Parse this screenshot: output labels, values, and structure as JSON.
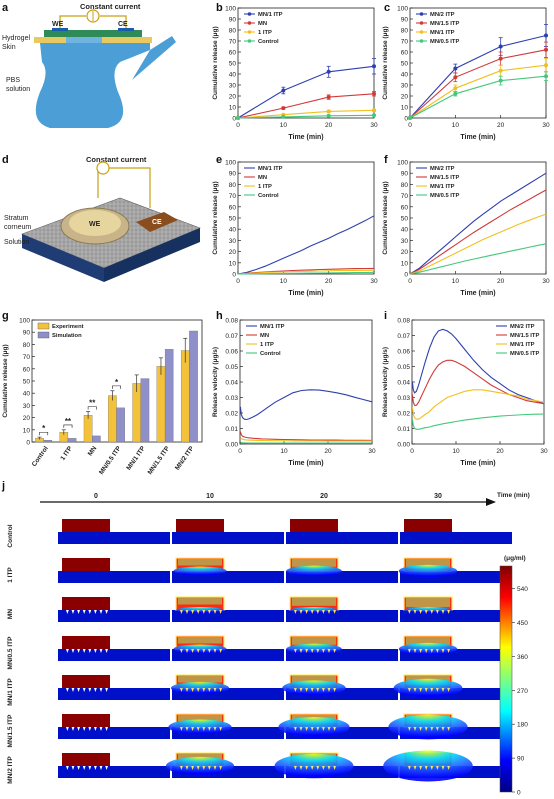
{
  "panel_letters": [
    "a",
    "b",
    "c",
    "d",
    "e",
    "f",
    "g",
    "h",
    "i",
    "j"
  ],
  "diagram_a": {
    "title": "Constant current",
    "we": "WE",
    "ce": "CE",
    "hydrogel": "Hydrogel",
    "skin": "Skin",
    "pbs1": "PBS",
    "pbs2": "solution"
  },
  "diagram_d": {
    "title": "Constant current",
    "stratum1": "Stratum",
    "stratum2": "corneum",
    "solution": "Solution",
    "we": "WE",
    "ce": "CE"
  },
  "colors": {
    "mn2": "#2e3fb0",
    "mn15": "#d23a3a",
    "mn1": "#f0c020",
    "mn05": "#44c87a",
    "experiment": "#f3c13a",
    "simulation": "#8f8fc9"
  },
  "heatmap": {
    "time_label": "Time (min)",
    "times": [
      "0",
      "10",
      "20",
      "30"
    ],
    "rows": [
      "Control",
      "1 ITP",
      "MN",
      "MN/0.5 ITP",
      "MN/1 ITP",
      "MN/1.5 ITP",
      "MN/2 ITP"
    ],
    "colorbar_unit": "(μg/ml)",
    "colorbar_ticks": [
      "540",
      "450",
      "360",
      "270",
      "180",
      "90",
      "0"
    ]
  },
  "chart_data": [
    {
      "id": "b",
      "type": "line",
      "xlabel": "Time (min)",
      "ylabel": "Cumulative release (μg)",
      "xlim": [
        0,
        30
      ],
      "ylim": [
        0,
        100
      ],
      "xticks": [
        0,
        10,
        20,
        30
      ],
      "yticks": [
        0,
        10,
        20,
        30,
        40,
        50,
        60,
        70,
        80,
        90,
        100
      ],
      "x": [
        0,
        10,
        20,
        30
      ],
      "series": [
        {
          "name": "MN/1 ITP",
          "color": "#2e3fb0",
          "values": [
            0,
            25,
            42,
            47
          ],
          "err": [
            0,
            3,
            5,
            7
          ]
        },
        {
          "name": "MN",
          "color": "#d23a3a",
          "values": [
            0,
            9,
            19,
            22
          ],
          "err": [
            0,
            1,
            2,
            2
          ]
        },
        {
          "name": "1 ITP",
          "color": "#f0c020",
          "values": [
            0,
            3,
            6,
            7
          ],
          "err": [
            0,
            0.5,
            1,
            1
          ]
        },
        {
          "name": "Control",
          "color": "#44c87a",
          "values": [
            0,
            1,
            2,
            2.5
          ],
          "err": [
            0,
            0.3,
            0.3,
            0.4
          ]
        }
      ],
      "legend": "top-left"
    },
    {
      "id": "c",
      "type": "line",
      "xlabel": "Time (min)",
      "ylabel": "Cumulative release (μg)",
      "xlim": [
        0,
        30
      ],
      "ylim": [
        0,
        100
      ],
      "xticks": [
        0,
        10,
        20,
        30
      ],
      "yticks": [
        0,
        10,
        20,
        30,
        40,
        50,
        60,
        70,
        80,
        90,
        100
      ],
      "x": [
        0,
        10,
        20,
        30
      ],
      "series": [
        {
          "name": "MN/2 ITP",
          "color": "#2e3fb0",
          "values": [
            0,
            45,
            65,
            75
          ],
          "err": [
            0,
            4,
            8,
            10
          ]
        },
        {
          "name": "MN/1.5 ITP",
          "color": "#d23a3a",
          "values": [
            0,
            37,
            54,
            62
          ],
          "err": [
            0,
            4,
            6,
            7
          ]
        },
        {
          "name": "MN/1 ITP",
          "color": "#f0c020",
          "values": [
            0,
            27,
            43,
            48
          ],
          "err": [
            0,
            3,
            5,
            6
          ]
        },
        {
          "name": "MN/0.5 ITP",
          "color": "#44c87a",
          "values": [
            0,
            22,
            34,
            38
          ],
          "err": [
            0,
            2,
            4,
            4
          ]
        }
      ],
      "legend": "top-left"
    },
    {
      "id": "e",
      "type": "line",
      "xlabel": "Time (min)",
      "ylabel": "Cumulative release (μg)",
      "xlim": [
        0,
        30
      ],
      "ylim": [
        0,
        100
      ],
      "xticks": [
        0,
        10,
        20,
        30
      ],
      "yticks": [
        0,
        10,
        20,
        30,
        40,
        50,
        60,
        70,
        80,
        90,
        100
      ],
      "x": [
        0,
        2,
        4,
        6,
        8,
        10,
        12,
        14,
        16,
        18,
        20,
        22,
        24,
        26,
        28,
        30
      ],
      "series": [
        {
          "name": "MN/1 ITP",
          "color": "#2e3fb0",
          "values": [
            0,
            1.5,
            4,
            7,
            10.5,
            14,
            17.5,
            21,
            25,
            28.5,
            32,
            36,
            39.5,
            43.5,
            47.5,
            52
          ]
        },
        {
          "name": "MN",
          "color": "#d23a3a",
          "values": [
            0,
            0.7,
            1.3,
            1.8,
            2.3,
            2.7,
            3.1,
            3.4,
            3.7,
            4,
            4.2,
            4.4,
            4.6,
            4.8,
            4.9,
            5
          ]
        },
        {
          "name": "1 ITP",
          "color": "#f0c020",
          "values": [
            0,
            0.5,
            0.9,
            1.3,
            1.6,
            1.9,
            2.1,
            2.3,
            2.5,
            2.7,
            2.9,
            3,
            3.1,
            3.2,
            3.3,
            3.4
          ]
        },
        {
          "name": "Control",
          "color": "#44c87a",
          "values": [
            0,
            0.1,
            0.2,
            0.3,
            0.4,
            0.5,
            0.6,
            0.7,
            0.8,
            0.9,
            1,
            1.1,
            1.2,
            1.3,
            1.4,
            1.5
          ]
        }
      ],
      "legend": "top-left"
    },
    {
      "id": "f",
      "type": "line",
      "xlabel": "Time (min)",
      "ylabel": "Cumulative release (μg)",
      "xlim": [
        0,
        30
      ],
      "ylim": [
        0,
        100
      ],
      "xticks": [
        0,
        10,
        20,
        30
      ],
      "yticks": [
        0,
        10,
        20,
        30,
        40,
        50,
        60,
        70,
        80,
        90,
        100
      ],
      "x": [
        0,
        2,
        4,
        6,
        8,
        10,
        12,
        14,
        16,
        18,
        20,
        22,
        24,
        26,
        28,
        30
      ],
      "series": [
        {
          "name": "MN/2 ITP",
          "color": "#2e3fb0",
          "values": [
            0,
            5,
            12,
            19,
            26,
            33,
            40,
            47,
            53,
            59,
            65,
            70,
            75,
            80,
            85,
            90
          ]
        },
        {
          "name": "MN/1.5 ITP",
          "color": "#d23a3a",
          "values": [
            0,
            4,
            9.5,
            15,
            20.5,
            26,
            31.5,
            37,
            42,
            47,
            52,
            57,
            61.5,
            66,
            70.5,
            75
          ]
        },
        {
          "name": "MN/1 ITP",
          "color": "#f0c020",
          "values": [
            0,
            2.5,
            6.5,
            10.5,
            14.5,
            18.5,
            22.5,
            26.5,
            30.5,
            34,
            37.5,
            41,
            44.5,
            47.5,
            50.5,
            53.5
          ]
        },
        {
          "name": "MN/0.5 ITP",
          "color": "#44c87a",
          "values": [
            0,
            1.5,
            3.5,
            5.5,
            7.5,
            9.5,
            11.5,
            13.3,
            15,
            16.8,
            18.5,
            20.3,
            22,
            23.7,
            25.4,
            27
          ]
        }
      ],
      "legend": "top-left"
    },
    {
      "id": "g",
      "type": "bar",
      "ylabel": "Cumulative release (μg)",
      "ylim": [
        0,
        100
      ],
      "yticks": [
        0,
        10,
        20,
        30,
        40,
        50,
        60,
        70,
        80,
        90,
        100
      ],
      "categories": [
        "Control",
        "1 ITP",
        "MN",
        "MN/0.5 ITP",
        "MN/1 ITP",
        "MN/1.5 ITP",
        "MN/2 ITP"
      ],
      "series": [
        {
          "name": "Experiment",
          "color": "#f3c13a",
          "values": [
            3,
            8,
            22,
            38,
            48,
            62,
            75
          ],
          "err": [
            1,
            2,
            3,
            4,
            7,
            7,
            10
          ]
        },
        {
          "name": "Simulation",
          "color": "#8f8fc9",
          "values": [
            1.5,
            3,
            5,
            28,
            52,
            76,
            91
          ],
          "err": [
            0,
            0,
            0,
            0,
            0,
            0,
            0
          ]
        }
      ],
      "significance": [
        {
          "category": 0,
          "label": "*"
        },
        {
          "category": 1,
          "label": "**"
        },
        {
          "category": 2,
          "label": "**"
        },
        {
          "category": 3,
          "label": "*"
        }
      ],
      "legend": "top-left"
    },
    {
      "id": "h",
      "type": "line",
      "xlabel": "Time (min)",
      "ylabel": "Release velocity (μg/s)",
      "xlim": [
        0,
        30
      ],
      "ylim": [
        0,
        0.08
      ],
      "xticks": [
        0,
        10,
        20,
        30
      ],
      "yticks": [
        0,
        0.01,
        0.02,
        0.03,
        0.04,
        0.05,
        0.06,
        0.07,
        0.08
      ],
      "yticklabels": [
        "0.00",
        "0.01",
        "0.02",
        "0.03",
        "0.04",
        "0.05",
        "0.06",
        "0.07",
        "0.08"
      ],
      "x": [
        0.1,
        0.3,
        0.6,
        1,
        1.5,
        2,
        3,
        4,
        5,
        6,
        8,
        10,
        12,
        14,
        16,
        18,
        20,
        22,
        24,
        26,
        28,
        30
      ],
      "series": [
        {
          "name": "MN/1 ITP",
          "color": "#2e3fb0",
          "values": [
            0.024,
            0.019,
            0.017,
            0.016,
            0.0158,
            0.0162,
            0.0175,
            0.019,
            0.021,
            0.023,
            0.027,
            0.03,
            0.033,
            0.0345,
            0.035,
            0.0348,
            0.034,
            0.033,
            0.0318,
            0.0302,
            0.0287,
            0.0272
          ]
        },
        {
          "name": "MN",
          "color": "#d23a3a",
          "values": [
            0.008,
            0.006,
            0.005,
            0.0045,
            0.0042,
            0.004,
            0.0037,
            0.0035,
            0.0033,
            0.0032,
            0.003,
            0.0029,
            0.0028,
            0.0027,
            0.0026,
            0.0026,
            0.0025,
            0.0025,
            0.0024,
            0.0024,
            0.0024,
            0.0023
          ]
        },
        {
          "name": "1 ITP",
          "color": "#f0c020",
          "values": [
            0.004,
            0.0035,
            0.003,
            0.0028,
            0.0026,
            0.0025,
            0.0024,
            0.0023,
            0.0022,
            0.0022,
            0.0021,
            0.0021,
            0.002,
            0.002,
            0.002,
            0.002,
            0.0019,
            0.0019,
            0.0019,
            0.0019,
            0.0019,
            0.0019
          ]
        },
        {
          "name": "Control",
          "color": "#44c87a",
          "values": [
            0.001,
            0.0009,
            0.0008,
            0.0007,
            0.0007,
            0.0006,
            0.0006,
            0.0006,
            0.0006,
            0.0006,
            0.0006,
            0.0006,
            0.0006,
            0.0006,
            0.0006,
            0.0006,
            0.0006,
            0.0006,
            0.0006,
            0.0006,
            0.0006,
            0.0006
          ]
        }
      ],
      "legend": "top-left"
    },
    {
      "id": "i",
      "type": "line",
      "xlabel": "Time (min)",
      "ylabel": "Release velocity (μg/s)",
      "xlim": [
        0,
        30
      ],
      "ylim": [
        0,
        0.08
      ],
      "xticks": [
        0,
        10,
        20,
        30
      ],
      "yticks": [
        0,
        0.01,
        0.02,
        0.03,
        0.04,
        0.05,
        0.06,
        0.07,
        0.08
      ],
      "yticklabels": [
        "0.00",
        "0.01",
        "0.02",
        "0.03",
        "0.04",
        "0.05",
        "0.06",
        "0.07",
        "0.08"
      ],
      "x": [
        0.1,
        0.3,
        0.6,
        1,
        1.5,
        2,
        3,
        4,
        5,
        6,
        7,
        8,
        9,
        10,
        12,
        14,
        16,
        18,
        20,
        22,
        24,
        26,
        28,
        30
      ],
      "series": [
        {
          "name": "MN/2 ITP",
          "color": "#2e3fb0",
          "values": [
            0.04,
            0.035,
            0.033,
            0.034,
            0.038,
            0.043,
            0.053,
            0.062,
            0.069,
            0.073,
            0.074,
            0.073,
            0.071,
            0.068,
            0.061,
            0.054,
            0.048,
            0.043,
            0.039,
            0.035,
            0.032,
            0.03,
            0.028,
            0.026
          ]
        },
        {
          "name": "MN/1.5 ITP",
          "color": "#d23a3a",
          "values": [
            0.032,
            0.027,
            0.025,
            0.025,
            0.027,
            0.03,
            0.036,
            0.042,
            0.047,
            0.051,
            0.053,
            0.054,
            0.054,
            0.053,
            0.05,
            0.046,
            0.042,
            0.038,
            0.035,
            0.032,
            0.03,
            0.028,
            0.027,
            0.026
          ]
        },
        {
          "name": "MN/1 ITP",
          "color": "#f0c020",
          "values": [
            0.024,
            0.019,
            0.017,
            0.016,
            0.016,
            0.017,
            0.019,
            0.021,
            0.024,
            0.026,
            0.028,
            0.03,
            0.031,
            0.032,
            0.034,
            0.035,
            0.035,
            0.034,
            0.033,
            0.032,
            0.031,
            0.029,
            0.028,
            0.027
          ]
        },
        {
          "name": "MN/0.5 ITP",
          "color": "#44c87a",
          "values": [
            0.016,
            0.012,
            0.01,
            0.0095,
            0.0095,
            0.0098,
            0.0105,
            0.011,
            0.0118,
            0.0124,
            0.013,
            0.0135,
            0.014,
            0.0145,
            0.0154,
            0.0162,
            0.0169,
            0.0175,
            0.018,
            0.0184,
            0.0187,
            0.019,
            0.0192,
            0.0193
          ]
        }
      ],
      "legend": "top-right"
    }
  ]
}
